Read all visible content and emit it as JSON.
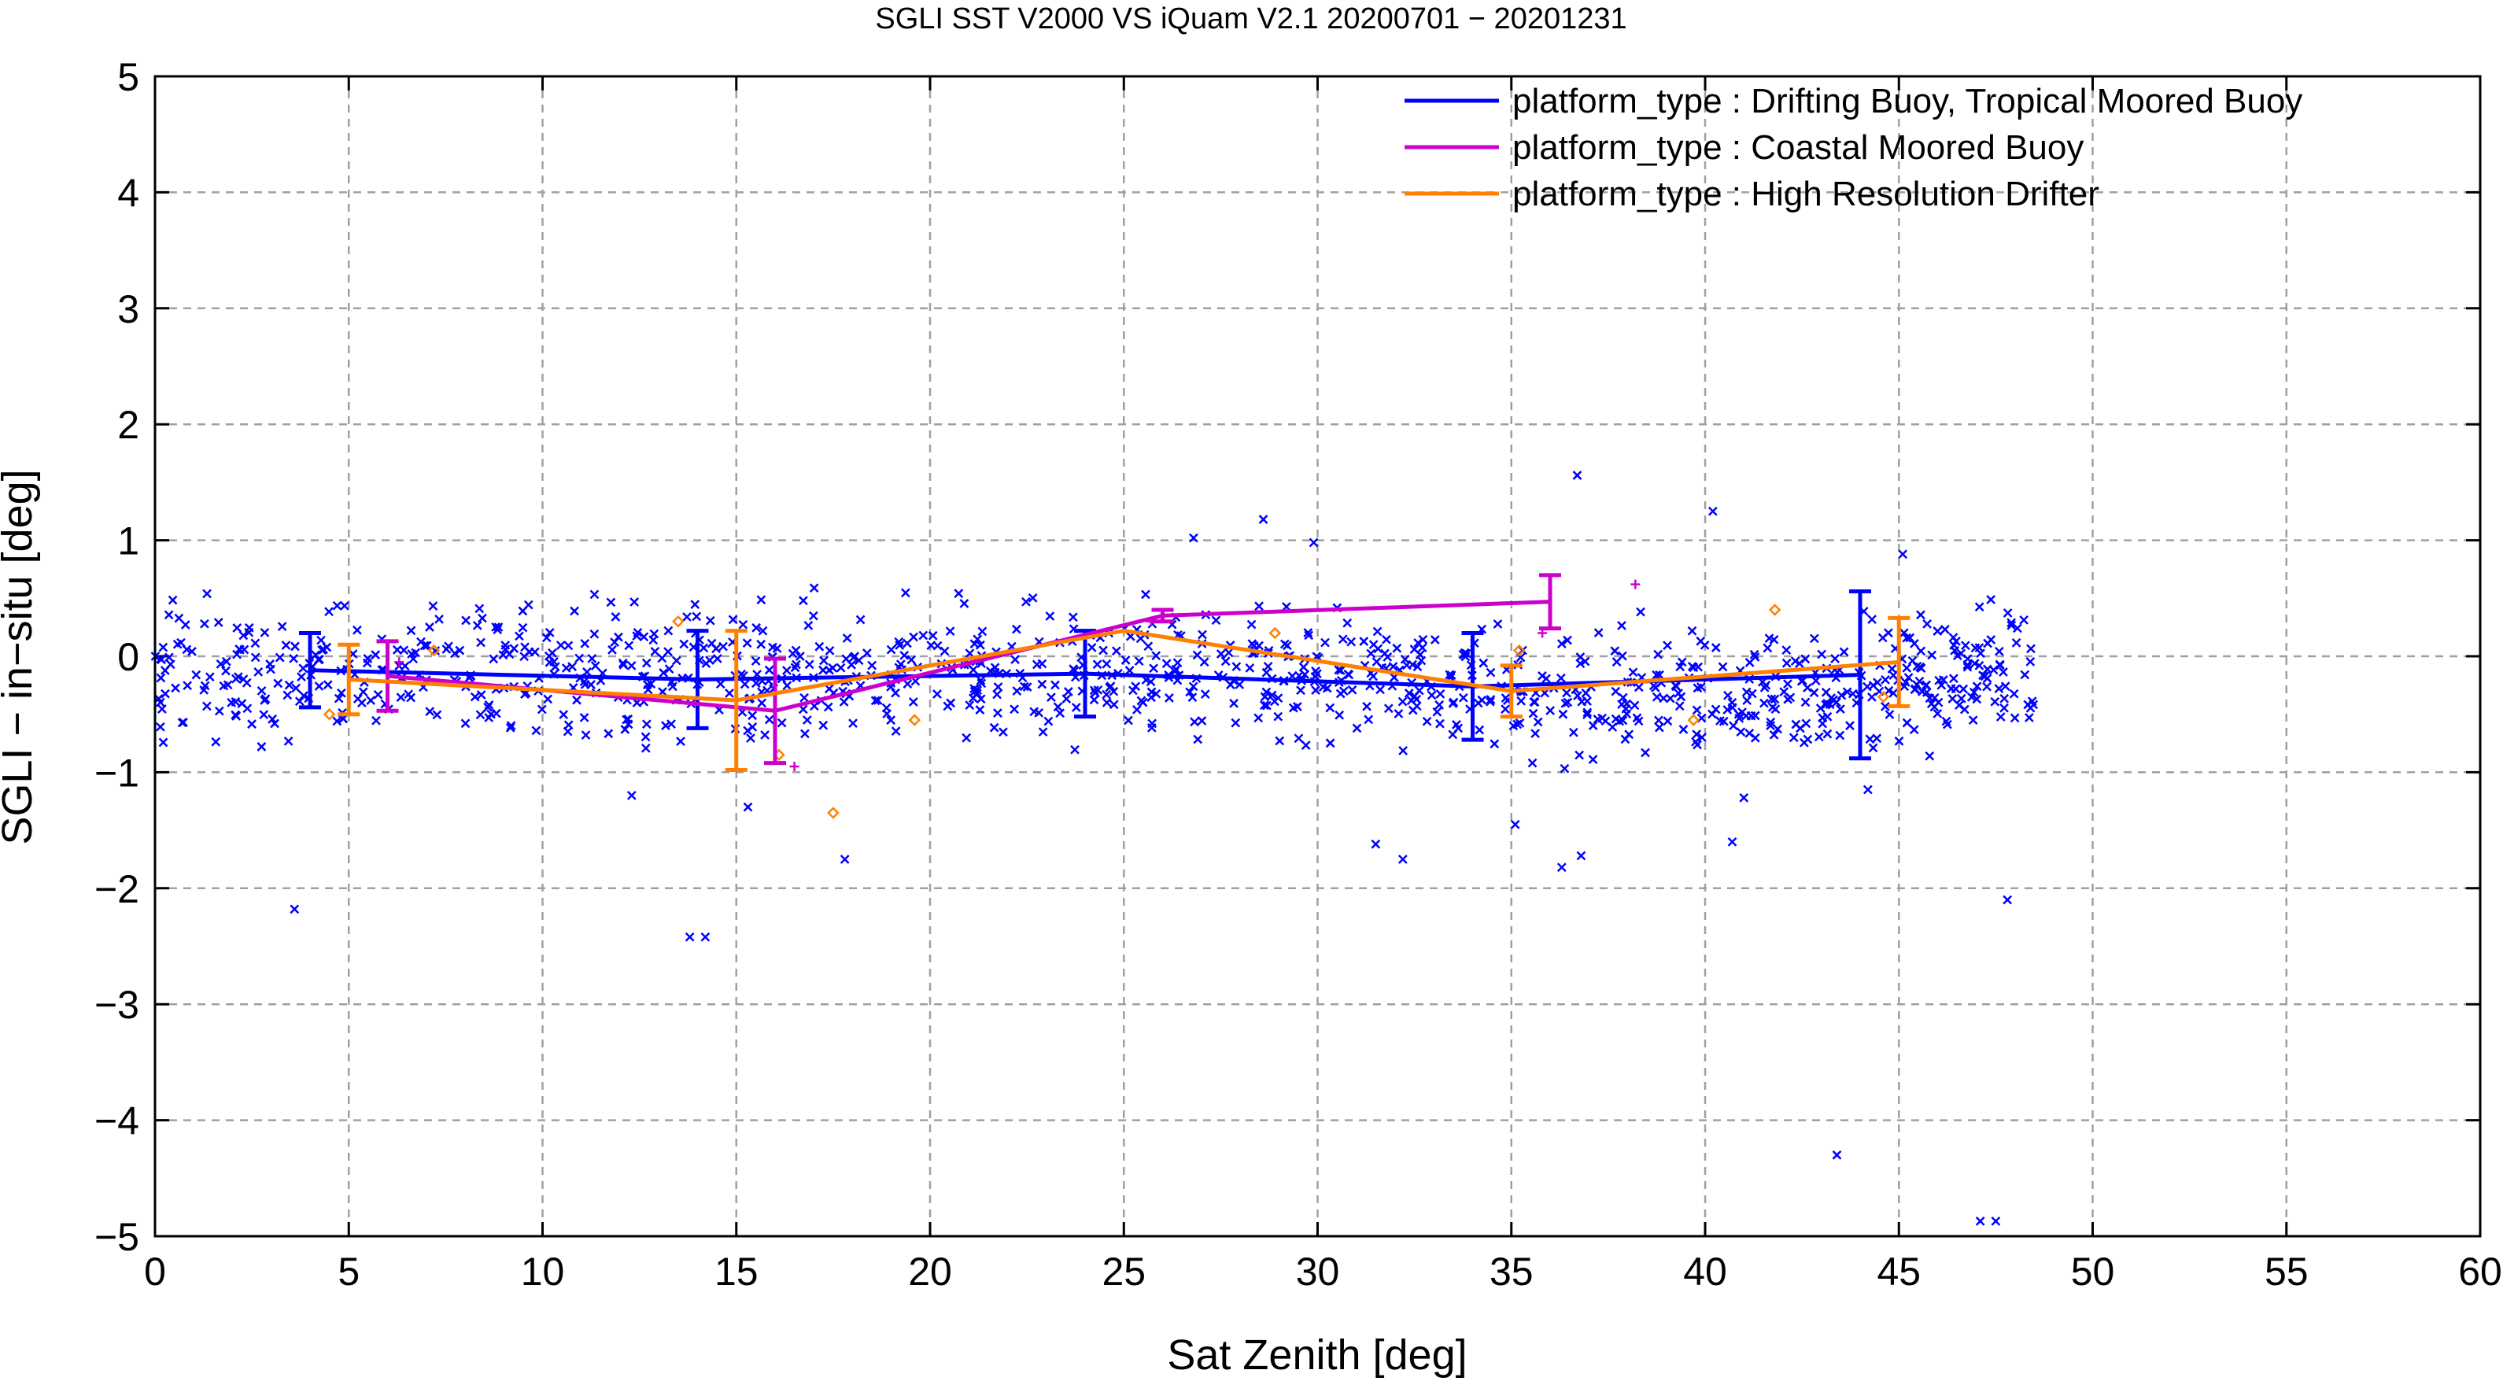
{
  "chart_data": {
    "type": "scatter",
    "title": "SGLI SST V2000 VS iQuam V2.1 20200701 − 20201231",
    "xlabel": "Sat Zenith [deg]",
    "ylabel": "SGLI − in−situ [deg]",
    "xlim": [
      0,
      60
    ],
    "ylim": [
      -5,
      5
    ],
    "x_ticks": [
      "0",
      "5",
      "10",
      "15",
      "20",
      "25",
      "30",
      "35",
      "40",
      "45",
      "50",
      "55",
      "60"
    ],
    "y_ticks": [
      "−5",
      "−4",
      "−3",
      "−2",
      "−1",
      "0",
      "1",
      "2",
      "3",
      "4",
      "5"
    ],
    "grid": true,
    "legend_position": "top-right",
    "series": [
      {
        "name": "platform_type : Drifting Buoy, Tropical Moored Buoy",
        "color": "#0000ff",
        "line": {
          "x": [
            4,
            14,
            24,
            34,
            44
          ],
          "y": [
            -0.12,
            -0.2,
            -0.15,
            -0.26,
            -0.16
          ],
          "err": [
            0.32,
            0.42,
            0.37,
            0.46,
            0.72
          ]
        },
        "scatter_band": {
          "x_range": [
            0,
            48.5
          ],
          "center": -0.15,
          "spread": 0.4
        },
        "scatter_outliers": [
          {
            "x": 3.6,
            "y": -2.18
          },
          {
            "x": 13.8,
            "y": -2.42
          },
          {
            "x": 14.2,
            "y": -2.42
          },
          {
            "x": 15.3,
            "y": -1.3
          },
          {
            "x": 17.8,
            "y": -1.75
          },
          {
            "x": 26.8,
            "y": 1.02
          },
          {
            "x": 28.6,
            "y": 1.18
          },
          {
            "x": 29.9,
            "y": 0.98
          },
          {
            "x": 32.2,
            "y": -1.75
          },
          {
            "x": 31.5,
            "y": -1.62
          },
          {
            "x": 36.7,
            "y": 1.56
          },
          {
            "x": 35.1,
            "y": -1.45
          },
          {
            "x": 36.3,
            "y": -1.82
          },
          {
            "x": 40.2,
            "y": 1.25
          },
          {
            "x": 40.7,
            "y": -1.6
          },
          {
            "x": 41.0,
            "y": -1.22
          },
          {
            "x": 43.4,
            "y": -4.3
          },
          {
            "x": 47.1,
            "y": -4.87
          },
          {
            "x": 47.5,
            "y": -4.87
          },
          {
            "x": 47.8,
            "y": -2.1
          },
          {
            "x": 45.1,
            "y": 0.88
          },
          {
            "x": 44.2,
            "y": -1.15
          },
          {
            "x": 12.3,
            "y": -1.2
          },
          {
            "x": 36.8,
            "y": -1.72
          }
        ]
      },
      {
        "name": "platform_type : Coastal Moored Buoy",
        "color": "#cc00cc",
        "line": {
          "x": [
            6,
            16,
            26,
            36
          ],
          "y": [
            -0.17,
            -0.47,
            0.35,
            0.47
          ],
          "err": [
            0.3,
            0.45,
            0.05,
            0.23
          ]
        },
        "scatter_points": [
          {
            "x": 6.3,
            "y": -0.05
          },
          {
            "x": 16.5,
            "y": -0.95
          },
          {
            "x": 25.7,
            "y": 0.3
          },
          {
            "x": 38.2,
            "y": 0.62
          },
          {
            "x": 35.8,
            "y": 0.2
          }
        ]
      },
      {
        "name": "platform_type : High Resolution Drifter",
        "color": "#ff8000",
        "line": {
          "x": [
            5,
            15,
            25,
            35,
            45
          ],
          "y": [
            -0.2,
            -0.38,
            0.22,
            -0.3,
            -0.05
          ],
          "err": [
            0.3,
            0.6,
            0.0,
            0.22,
            0.38
          ]
        },
        "scatter_points": [
          {
            "x": 4.5,
            "y": -0.5
          },
          {
            "x": 7.2,
            "y": 0.05
          },
          {
            "x": 13.5,
            "y": 0.3
          },
          {
            "x": 16.1,
            "y": -0.85
          },
          {
            "x": 17.5,
            "y": -1.35
          },
          {
            "x": 19.6,
            "y": -0.55
          },
          {
            "x": 28.9,
            "y": 0.2
          },
          {
            "x": 35.2,
            "y": 0.05
          },
          {
            "x": 39.7,
            "y": -0.55
          },
          {
            "x": 41.8,
            "y": 0.4
          },
          {
            "x": 44.6,
            "y": -0.35
          }
        ]
      }
    ]
  }
}
